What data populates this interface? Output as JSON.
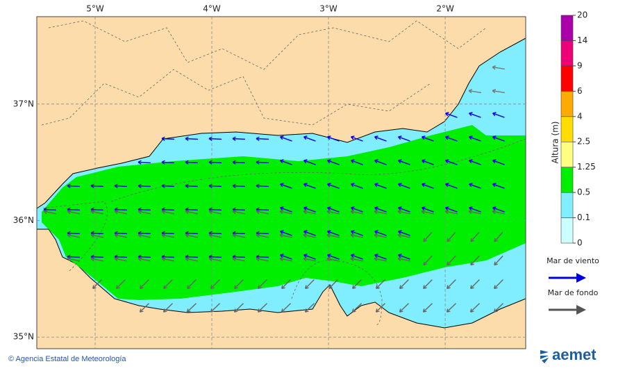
{
  "map": {
    "lonlim": [
      -5.5,
      -1.31
    ],
    "latlim": [
      34.9,
      37.75
    ],
    "lonticks": [
      {
        "value": -5,
        "label": "5°W"
      },
      {
        "value": -4,
        "label": "4°W"
      },
      {
        "value": -3,
        "label": "3°W"
      },
      {
        "value": -2,
        "label": "2°W"
      }
    ],
    "latticks": [
      {
        "value": 37,
        "label": "37°N"
      },
      {
        "value": 36,
        "label": "36°N"
      },
      {
        "value": 35,
        "label": "35°N"
      }
    ]
  },
  "colorbar": {
    "title": "Altura (m)",
    "levels": [
      0,
      0.1,
      0.5,
      1.25,
      2.5,
      4,
      6,
      9,
      14,
      20
    ],
    "colors": [
      "#ccffff",
      "#80eeff",
      "#00ee00",
      "#ffff80",
      "#ffdd00",
      "#ffaa00",
      "#ff0000",
      "#ee0077",
      "#aa00aa"
    ]
  },
  "legend": [
    {
      "name": "Mar de viento",
      "color": "#0000dd"
    },
    {
      "name": "Mar de fondo",
      "color": "#555555"
    }
  ],
  "footer": {
    "credit": "© Agencia Estatal de Meteorología",
    "logo": "aemet"
  }
}
